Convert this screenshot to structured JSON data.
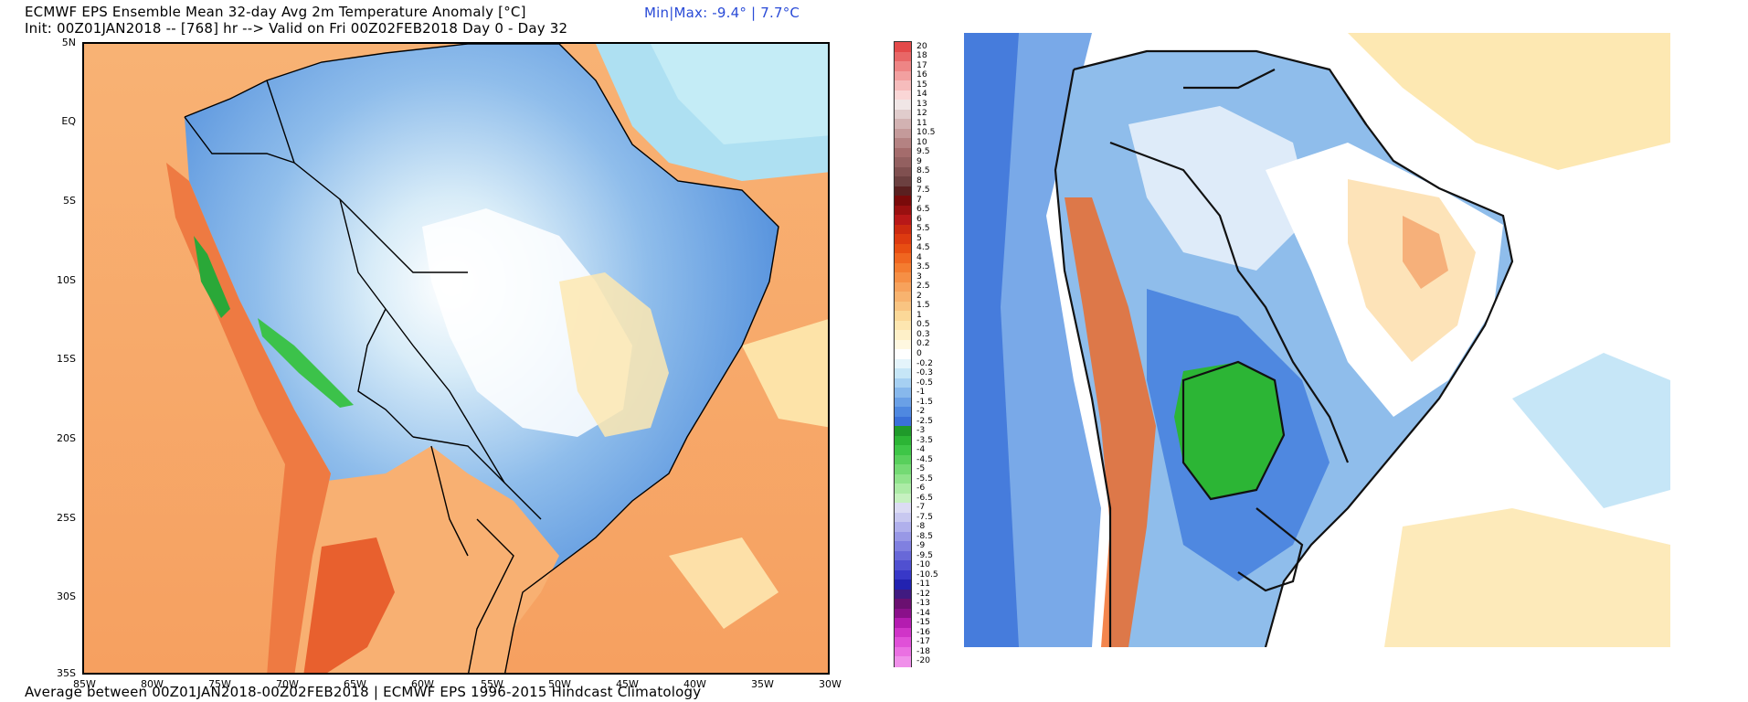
{
  "header": {
    "title": "ECMWF EPS Ensemble Mean 32-day Avg 2m Temperature Anomaly [°C]",
    "init_line": "Init: 00Z01JAN2018 -- [768] hr --> Valid on Fri 00Z02FEB2018  Day 0 - Day 32",
    "minmax": "Min|Max:  -9.4°  |  7.7°C"
  },
  "footer": {
    "text": "Average between 00Z01JAN2018-00Z02FEB2018 | ECMWF EPS 1996-2015 Hindcast Climatology"
  },
  "map_left": {
    "lat_labels": [
      "5N",
      "EQ",
      "5S",
      "10S",
      "15S",
      "20S",
      "25S",
      "30S",
      "35S"
    ],
    "lon_labels": [
      "85W",
      "80W",
      "75W",
      "70W",
      "65W",
      "60W",
      "55W",
      "50W",
      "45W",
      "40W",
      "35W",
      "30W"
    ]
  },
  "colorbar": {
    "labels": [
      "20",
      "18",
      "17",
      "16",
      "15",
      "14",
      "13",
      "12",
      "11",
      "10.5",
      "10",
      "9.5",
      "9",
      "8.5",
      "8",
      "7.5",
      "7",
      "6.5",
      "6",
      "5.5",
      "5",
      "4.5",
      "4",
      "3.5",
      "3",
      "2.5",
      "2",
      "1.5",
      "1",
      "0.5",
      "0.3",
      "0.2",
      "0",
      "-0.2",
      "-0.3",
      "-0.5",
      "-1",
      "-1.5",
      "-2",
      "-2.5",
      "-3",
      "-3.5",
      "-4",
      "-4.5",
      "-5",
      "-5.5",
      "-6",
      "-6.5",
      "-7",
      "-7.5",
      "-8",
      "-8.5",
      "-9",
      "-9.5",
      "-10",
      "-10.5",
      "-11",
      "-12",
      "-13",
      "-14",
      "-15",
      "-16",
      "-17",
      "-18",
      "-20"
    ],
    "colors": [
      "#e34a4a",
      "#e86767",
      "#ee8585",
      "#f2a0a0",
      "#f6bcbc",
      "#fad6d6",
      "#f0e6e6",
      "#e0cccc",
      "#d2b2b2",
      "#c49a9a",
      "#b48282",
      "#a46c6c",
      "#936060",
      "#805050",
      "#6c4040",
      "#5a2020",
      "#7a0a0a",
      "#9a1010",
      "#b81818",
      "#cc2a10",
      "#dd3a10",
      "#e84e12",
      "#f06620",
      "#f47c30",
      "#f68f45",
      "#f7a25c",
      "#f8b36f",
      "#f9c482",
      "#fbd898",
      "#fde6b0",
      "#fef0c8",
      "#fff8e0",
      "#ffffff",
      "#e4f4fb",
      "#c6e6f7",
      "#a6d0f2",
      "#87b8ec",
      "#6aa0e6",
      "#4f88e0",
      "#3a70d8",
      "#1f9a2a",
      "#2cb535",
      "#3ec647",
      "#58d05c",
      "#74da74",
      "#90e38c",
      "#aceba6",
      "#c6f1c0",
      "#dcdcf4",
      "#c8c8f0",
      "#b0b0ec",
      "#9898e6",
      "#8080e0",
      "#6868d8",
      "#5050d0",
      "#3838c8",
      "#2222b0",
      "#401a80",
      "#6a1070",
      "#8a108a",
      "#b41cb0",
      "#d034c8",
      "#e050d8",
      "#ea70e2",
      "#f090ea"
    ]
  },
  "map_right": {}
}
